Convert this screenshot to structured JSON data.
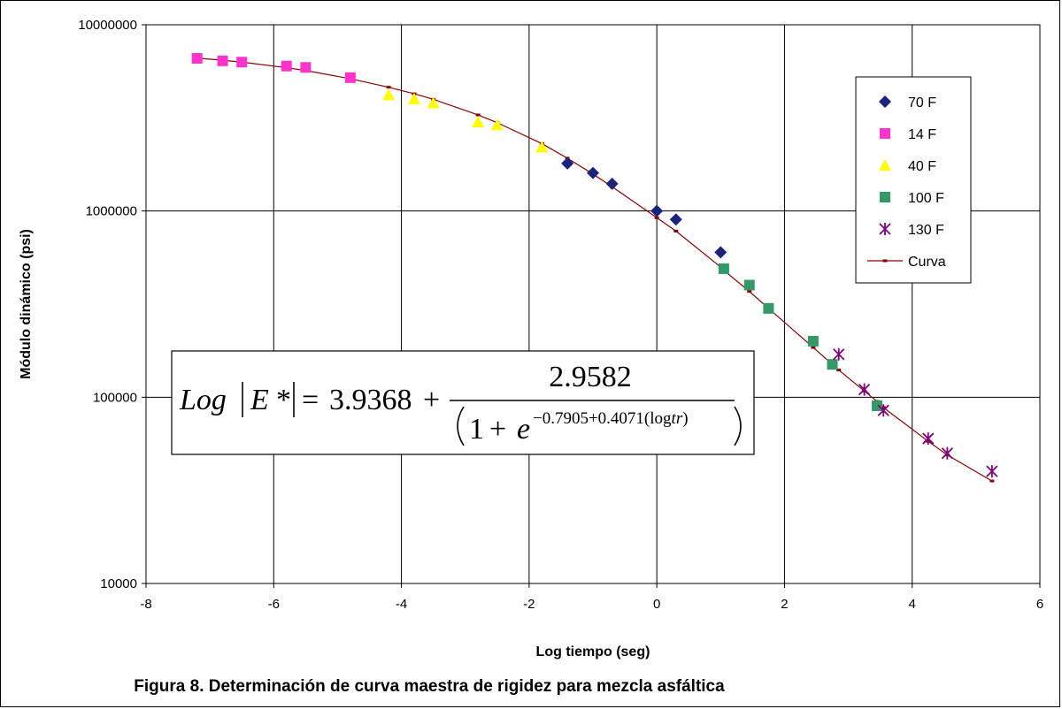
{
  "chart_data": {
    "type": "scatter",
    "xlabel": "Log tiempo (seg)",
    "ylabel": "Módulo dinámico (psi)",
    "caption": "Figura 8. Determinación de curva maestra de rigidez para mezcla asfáltica",
    "x_ticks": [
      "-8",
      "-6",
      "-4",
      "-2",
      "0",
      "2",
      "4",
      "6"
    ],
    "y_ticks": [
      "10000",
      "100000",
      "1000000",
      "10000000"
    ],
    "xlim": [
      -8,
      6
    ],
    "ylim": [
      10000,
      10000000
    ],
    "y_scale": "log",
    "grid": true,
    "legend_position": "right",
    "equation": {
      "lhs_log": "Log",
      "lhs_var": "E",
      "lhs_star": "*",
      "equals": "=",
      "constant": "3.9368",
      "plus": "+",
      "numerator": "2.9582",
      "denom_one": "1",
      "denom_plus": "+",
      "denom_e": "e",
      "exponent": "−0.7905+0.4071(log",
      "exponent_var": "tr",
      "exponent_close": ")"
    },
    "series": [
      {
        "name": "70 F",
        "marker": "diamond",
        "color": "#1a237e",
        "x": [
          -1.4,
          -1.0,
          -0.7,
          0.0,
          0.3,
          1.0
        ],
        "y": [
          1800000,
          1600000,
          1400000,
          1000000,
          900000,
          600000
        ]
      },
      {
        "name": "14 F",
        "marker": "square",
        "color": "#ff33cc",
        "x": [
          -7.2,
          -6.8,
          -6.5,
          -5.8,
          -5.5,
          -4.8
        ],
        "y": [
          6600000,
          6400000,
          6300000,
          6000000,
          5900000,
          5200000
        ]
      },
      {
        "name": "40 F",
        "marker": "triangle",
        "color": "#ffff00",
        "x": [
          -4.2,
          -3.8,
          -3.5,
          -2.8,
          -2.5,
          -1.8
        ],
        "y": [
          4200000,
          4000000,
          3800000,
          3000000,
          2900000,
          2200000
        ]
      },
      {
        "name": "100 F",
        "marker": "square",
        "color": "#339966",
        "x": [
          1.05,
          1.45,
          1.75,
          2.45,
          2.75,
          3.45
        ],
        "y": [
          490000,
          400000,
          300000,
          200000,
          150000,
          90000
        ]
      },
      {
        "name": "130 F",
        "marker": "star",
        "color": "#800080",
        "x": [
          2.85,
          3.25,
          3.55,
          4.25,
          4.55,
          5.25
        ],
        "y": [
          170000,
          110000,
          85000,
          60000,
          50000,
          40000
        ]
      },
      {
        "name": "Curva",
        "marker": "line",
        "color": "#8b0000",
        "x": [
          -7.2,
          -6.8,
          -6.5,
          -5.8,
          -5.5,
          -4.8,
          -4.2,
          -3.8,
          -3.5,
          -2.8,
          -2.5,
          -1.8,
          -1.4,
          -1.0,
          -0.7,
          0.0,
          0.3,
          1.0,
          1.05,
          1.45,
          1.75,
          2.45,
          2.75,
          2.85,
          3.25,
          3.45,
          3.55,
          4.25,
          4.55,
          5.25
        ],
        "y": [
          6620000,
          6450000,
          6300000,
          5880000,
          5680000,
          5130000,
          4620000,
          4260000,
          3980000,
          3280000,
          2980000,
          2300000,
          1920000,
          1580000,
          1350000,
          920000,
          780000,
          500000,
          480000,
          370000,
          300000,
          185000,
          150000,
          140000,
          108000,
          95000,
          88000,
          58000,
          49000,
          35500
        ]
      }
    ]
  }
}
